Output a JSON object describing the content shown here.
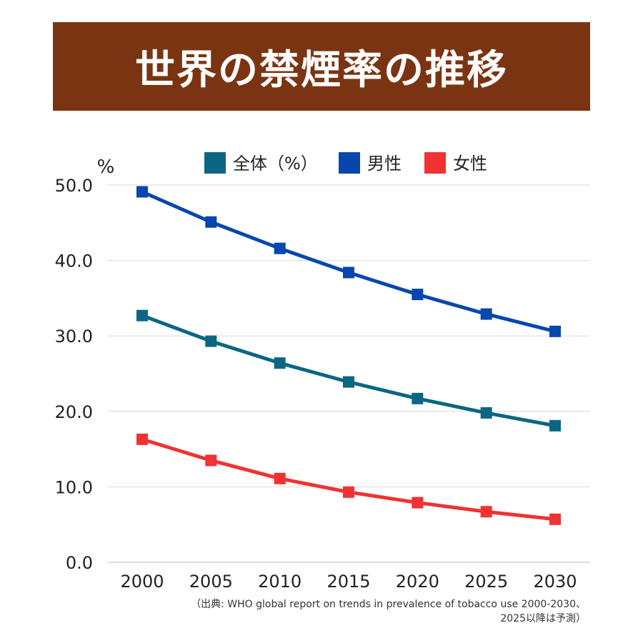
{
  "title": "世界の禁煙率の推移",
  "source": {
    "line1": "（出典: WHO global report on trends in prevalence of tobacco use 2000-2030、",
    "line2": "2025以降は予測）"
  },
  "colors": {
    "title_bg": "#7b3412",
    "overall": "#0b6683",
    "male": "#0747ad",
    "female": "#f03232",
    "grid": "#d9d9d9",
    "axis_text": "#222222"
  },
  "chart_data": {
    "type": "line",
    "title": "世界の禁煙率の推移",
    "ylabel": "%",
    "xlabel": "",
    "categories": [
      "2000",
      "2005",
      "2010",
      "2015",
      "2020",
      "2025",
      "2030"
    ],
    "ylim": [
      0,
      50
    ],
    "yticks": [
      "0.0",
      "10.0",
      "20.0",
      "30.0",
      "40.0",
      "50.0"
    ],
    "grid": true,
    "legend_position": "top",
    "series": [
      {
        "name": "全体（%）",
        "color": "#0b6683",
        "values": [
          32.7,
          29.3,
          26.4,
          23.9,
          21.7,
          19.8,
          18.1
        ]
      },
      {
        "name": "男性",
        "color": "#0747ad",
        "values": [
          49.1,
          45.1,
          41.6,
          38.4,
          35.5,
          32.9,
          30.6
        ]
      },
      {
        "name": "女性",
        "color": "#f03232",
        "values": [
          16.3,
          13.5,
          11.1,
          9.3,
          7.9,
          6.7,
          5.7
        ]
      }
    ]
  }
}
